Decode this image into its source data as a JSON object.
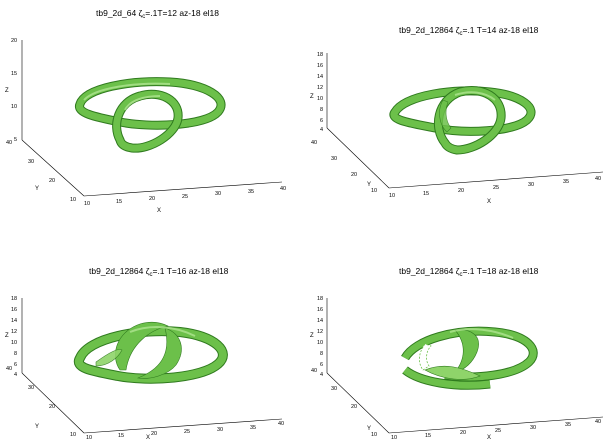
{
  "panels": [
    {
      "title_pre": "tb9_2d_64 ",
      "title_sym": "ζ",
      "title_sub": "c",
      "title_post": "=.1T=12 az-18 el18",
      "z_ticks": [
        "20",
        "15",
        "10",
        "5"
      ],
      "y_ticks": [
        "40",
        "30",
        "20",
        "10"
      ],
      "x_ticks": [
        "10",
        "15",
        "20",
        "25",
        "30",
        "35",
        "40"
      ],
      "xlabel": "X",
      "ylabel": "Y",
      "zlabel": "Z"
    },
    {
      "title_pre": "tb9_2d_12864 ",
      "title_sym": "ζ",
      "title_sub": "c",
      "title_post": "=.1 T=14 az-18 el18",
      "z_ticks": [
        "18",
        "16",
        "14",
        "12",
        "10",
        "8",
        "6",
        "4"
      ],
      "y_ticks": [
        "40",
        "30",
        "20",
        "10"
      ],
      "x_ticks": [
        "10",
        "15",
        "20",
        "25",
        "30",
        "35",
        "40"
      ],
      "xlabel": "X",
      "ylabel": "Y",
      "zlabel": "Z"
    },
    {
      "title_pre": "tb9_2d_12864 ",
      "title_sym": "ζ",
      "title_sub": "c",
      "title_post": "=.1 T=16 az-18 el18",
      "z_ticks": [
        "18",
        "16",
        "14",
        "12",
        "10",
        "8",
        "6",
        "4"
      ],
      "y_ticks": [
        "40",
        "30",
        "20",
        "10"
      ],
      "x_ticks": [
        "10",
        "15",
        "20",
        "25",
        "30",
        "35",
        "40"
      ],
      "xlabel": "X",
      "ylabel": "Y",
      "zlabel": "Z"
    },
    {
      "title_pre": "tb9_2d_12864 ",
      "title_sym": "ζ",
      "title_sub": "c",
      "title_post": "=.1 T=18 az-18 el18",
      "z_ticks": [
        "18",
        "16",
        "14",
        "12",
        "10",
        "8",
        "6",
        "4"
      ],
      "y_ticks": [
        "40",
        "30",
        "20",
        "10"
      ],
      "x_ticks": [
        "10",
        "15",
        "20",
        "25",
        "30",
        "35",
        "40"
      ],
      "xlabel": "X",
      "ylabel": "Y",
      "zlabel": "Z"
    }
  ],
  "colors": {
    "surface": "#6cc04a",
    "surface_light": "#b8e99a",
    "surface_dark": "#2f7a1e",
    "axis": "#000000"
  }
}
